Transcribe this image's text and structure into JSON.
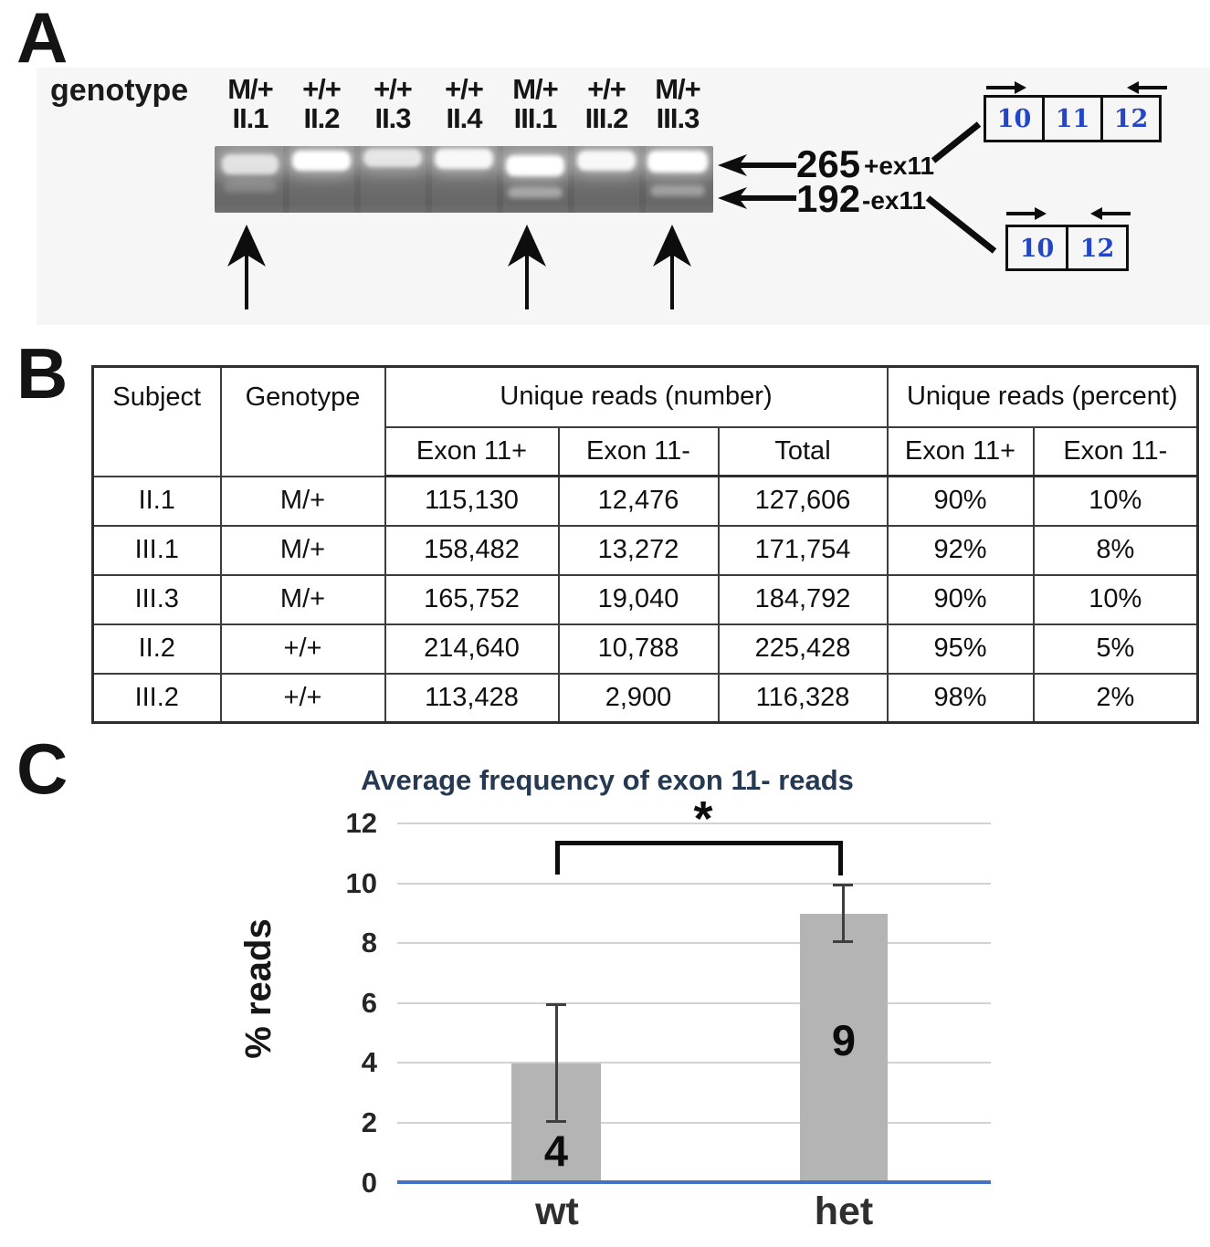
{
  "panel_a": {
    "label": "A",
    "genotype_label": "genotype",
    "lanes": [
      {
        "genotype": "M/+",
        "id": "II.1"
      },
      {
        "genotype": "+/+",
        "id": "II.2"
      },
      {
        "genotype": "+/+",
        "id": "II.3"
      },
      {
        "genotype": "+/+",
        "id": "II.4"
      },
      {
        "genotype": "M/+",
        "id": "III.1"
      },
      {
        "genotype": "+/+",
        "id": "III.2"
      },
      {
        "genotype": "M/+",
        "id": "III.3"
      }
    ],
    "band_markers": [
      {
        "size": "265",
        "tag": "+ex11"
      },
      {
        "size": "192",
        "tag": "-ex11"
      }
    ],
    "exon_diagram_full": [
      "10",
      "11",
      "12"
    ],
    "exon_diagram_skipped": [
      "10",
      "12"
    ]
  },
  "panel_b": {
    "label": "B",
    "table": {
      "header_subject": "Subject",
      "header_genotype": "Genotype",
      "group_number": "Unique reads (number)",
      "group_percent": "Unique reads (percent)",
      "subheaders": [
        "Exon 11+",
        "Exon 11-",
        "Total",
        "Exon 11+",
        "Exon 11-"
      ],
      "rows": [
        [
          "II.1",
          "M/+",
          "115,130",
          "12,476",
          "127,606",
          "90%",
          "10%"
        ],
        [
          "III.1",
          "M/+",
          "158,482",
          "13,272",
          "171,754",
          "92%",
          "8%"
        ],
        [
          "III.3",
          "M/+",
          "165,752",
          "19,040",
          "184,792",
          "90%",
          "10%"
        ],
        [
          "II.2",
          "+/+",
          "214,640",
          "10,788",
          "225,428",
          "95%",
          "5%"
        ],
        [
          "III.2",
          "+/+",
          "113,428",
          "2,900",
          "116,328",
          "98%",
          "2%"
        ]
      ]
    }
  },
  "panel_c": {
    "label": "C"
  },
  "chart_data": {
    "type": "bar",
    "title": "Average frequency of exon 11- reads",
    "ylabel": "% reads",
    "categories": [
      "wt",
      "het"
    ],
    "values": [
      4,
      9
    ],
    "bar_labels": [
      "4",
      "9"
    ],
    "error_bars": [
      {
        "low": 2,
        "high": 6
      },
      {
        "low": 8,
        "high": 10
      }
    ],
    "yticks": [
      12,
      10,
      8,
      6,
      4,
      2,
      0
    ],
    "ylim": [
      0,
      12
    ],
    "significance_marker": "*",
    "grid": true,
    "legend": false,
    "baseline_color": "#4472c4",
    "bar_color": "#b4b4b4",
    "title_color": "#253a52"
  }
}
